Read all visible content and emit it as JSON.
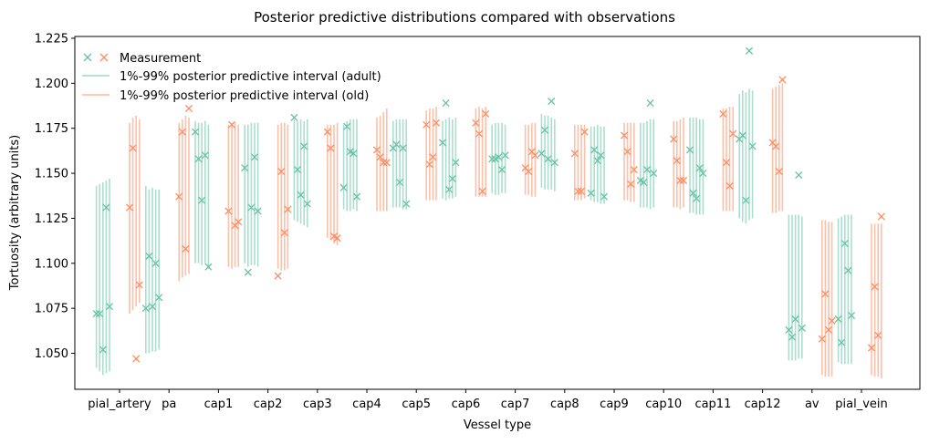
{
  "chart_data": {
    "type": "scatter",
    "title": "Posterior predictive distributions compared with observations",
    "xlabel": "Vessel type",
    "ylabel": "Tortuosity (arbitrary units)",
    "ylim": [
      1.03,
      1.226
    ],
    "yticks": [
      1.05,
      1.075,
      1.1,
      1.125,
      1.15,
      1.175,
      1.2,
      1.225
    ],
    "grid": false,
    "legend_position": "top-left",
    "legend": {
      "measurement": "Measurement",
      "adult_interval": "1%-99% posterior predictive interval (adult)",
      "old_interval": "1%-99% posterior predictive interval (old)"
    },
    "colors": {
      "adult": "#66c2a5",
      "old": "#fc8d62"
    },
    "categories": [
      {
        "name": "pial_artery",
        "adult": [
          {
            "lo": 1.042,
            "hi": 1.143,
            "obs": 1.072
          },
          {
            "lo": 1.04,
            "hi": 1.144,
            "obs": 1.072
          },
          {
            "lo": 1.038,
            "hi": 1.145,
            "obs": 1.052
          },
          {
            "lo": 1.039,
            "hi": 1.146,
            "obs": 1.131
          },
          {
            "lo": 1.04,
            "hi": 1.147,
            "obs": 1.076
          }
        ],
        "old": [
          {
            "lo": 1.072,
            "hi": 1.178,
            "obs": 1.131
          },
          {
            "lo": 1.074,
            "hi": 1.181,
            "obs": 1.164
          },
          {
            "lo": 1.076,
            "hi": 1.182,
            "obs": 1.047
          },
          {
            "lo": 1.078,
            "hi": 1.18,
            "obs": 1.088
          }
        ]
      },
      {
        "name": "pa",
        "adult": [
          {
            "lo": 1.05,
            "hi": 1.143,
            "obs": 1.075
          },
          {
            "lo": 1.05,
            "hi": 1.141,
            "obs": 1.104
          },
          {
            "lo": 1.051,
            "hi": 1.142,
            "obs": 1.076
          },
          {
            "lo": 1.051,
            "hi": 1.141,
            "obs": 1.1
          },
          {
            "lo": 1.052,
            "hi": 1.141,
            "obs": 1.081
          }
        ],
        "old": [
          {
            "lo": 1.09,
            "hi": 1.178,
            "obs": 1.137
          },
          {
            "lo": 1.092,
            "hi": 1.18,
            "obs": 1.173
          },
          {
            "lo": 1.093,
            "hi": 1.182,
            "obs": 1.108
          },
          {
            "lo": 1.094,
            "hi": 1.181,
            "obs": 1.186
          }
        ]
      },
      {
        "name": "cap1",
        "adult": [
          {
            "lo": 1.1,
            "hi": 1.179,
            "obs": 1.173
          },
          {
            "lo": 1.1,
            "hi": 1.178,
            "obs": 1.158
          },
          {
            "lo": 1.099,
            "hi": 1.178,
            "obs": 1.135
          },
          {
            "lo": 1.1,
            "hi": 1.179,
            "obs": 1.16
          },
          {
            "lo": 1.097,
            "hi": 1.177,
            "obs": 1.098
          }
        ],
        "old": [
          {
            "lo": 1.098,
            "hi": 1.177,
            "obs": 1.129
          },
          {
            "lo": 1.097,
            "hi": 1.178,
            "obs": 1.177
          },
          {
            "lo": 1.098,
            "hi": 1.178,
            "obs": 1.121
          },
          {
            "lo": 1.098,
            "hi": 1.177,
            "obs": 1.123
          }
        ]
      },
      {
        "name": "cap2",
        "adult": [
          {
            "lo": 1.1,
            "hi": 1.177,
            "obs": 1.153
          },
          {
            "lo": 1.098,
            "hi": 1.177,
            "obs": 1.095
          },
          {
            "lo": 1.099,
            "hi": 1.178,
            "obs": 1.131
          },
          {
            "lo": 1.099,
            "hi": 1.178,
            "obs": 1.159
          },
          {
            "lo": 1.098,
            "hi": 1.178,
            "obs": 1.129
          }
        ],
        "old": [
          {
            "lo": 1.097,
            "hi": 1.177,
            "obs": 1.093
          },
          {
            "lo": 1.096,
            "hi": 1.178,
            "obs": 1.151
          },
          {
            "lo": 1.096,
            "hi": 1.178,
            "obs": 1.117
          },
          {
            "lo": 1.097,
            "hi": 1.177,
            "obs": 1.13
          }
        ]
      },
      {
        "name": "cap3",
        "adult": [
          {
            "lo": 1.124,
            "hi": 1.18,
            "obs": 1.181
          },
          {
            "lo": 1.123,
            "hi": 1.179,
            "obs": 1.152
          },
          {
            "lo": 1.122,
            "hi": 1.18,
            "obs": 1.138
          },
          {
            "lo": 1.121,
            "hi": 1.179,
            "obs": 1.165
          },
          {
            "lo": 1.12,
            "hi": 1.18,
            "obs": 1.133
          }
        ],
        "old": [
          {
            "lo": 1.114,
            "hi": 1.177,
            "obs": 1.173
          },
          {
            "lo": 1.113,
            "hi": 1.177,
            "obs": 1.164
          },
          {
            "lo": 1.111,
            "hi": 1.177,
            "obs": 1.115
          },
          {
            "lo": 1.11,
            "hi": 1.178,
            "obs": 1.114
          }
        ]
      },
      {
        "name": "cap4",
        "adult": [
          {
            "lo": 1.13,
            "hi": 1.177,
            "obs": 1.142
          },
          {
            "lo": 1.129,
            "hi": 1.179,
            "obs": 1.176
          },
          {
            "lo": 1.129,
            "hi": 1.18,
            "obs": 1.162
          },
          {
            "lo": 1.13,
            "hi": 1.18,
            "obs": 1.161
          },
          {
            "lo": 1.129,
            "hi": 1.18,
            "obs": 1.137
          }
        ],
        "old": [
          {
            "lo": 1.129,
            "hi": 1.181,
            "obs": 1.163
          },
          {
            "lo": 1.129,
            "hi": 1.182,
            "obs": 1.159
          },
          {
            "lo": 1.129,
            "hi": 1.184,
            "obs": 1.156
          },
          {
            "lo": 1.129,
            "hi": 1.186,
            "obs": 1.156
          }
        ]
      },
      {
        "name": "cap5",
        "adult": [
          {
            "lo": 1.131,
            "hi": 1.179,
            "obs": 1.164
          },
          {
            "lo": 1.131,
            "hi": 1.18,
            "obs": 1.166
          },
          {
            "lo": 1.131,
            "hi": 1.18,
            "obs": 1.145
          },
          {
            "lo": 1.13,
            "hi": 1.18,
            "obs": 1.164
          },
          {
            "lo": 1.13,
            "hi": 1.18,
            "obs": 1.133
          }
        ],
        "old": [
          {
            "lo": 1.135,
            "hi": 1.185,
            "obs": 1.177
          },
          {
            "lo": 1.135,
            "hi": 1.186,
            "obs": 1.155
          },
          {
            "lo": 1.135,
            "hi": 1.186,
            "obs": 1.159
          },
          {
            "lo": 1.135,
            "hi": 1.187,
            "obs": 1.178
          }
        ]
      },
      {
        "name": "cap6",
        "adult": [
          {
            "lo": 1.136,
            "hi": 1.179,
            "obs": 1.167
          },
          {
            "lo": 1.135,
            "hi": 1.18,
            "obs": 1.189
          },
          {
            "lo": 1.136,
            "hi": 1.181,
            "obs": 1.141
          },
          {
            "lo": 1.136,
            "hi": 1.18,
            "obs": 1.147
          },
          {
            "lo": 1.137,
            "hi": 1.181,
            "obs": 1.156
          }
        ],
        "old": [
          {
            "lo": 1.137,
            "hi": 1.186,
            "obs": 1.178
          },
          {
            "lo": 1.137,
            "hi": 1.187,
            "obs": 1.172
          },
          {
            "lo": 1.137,
            "hi": 1.186,
            "obs": 1.14
          },
          {
            "lo": 1.137,
            "hi": 1.187,
            "obs": 1.183
          }
        ]
      },
      {
        "name": "cap7",
        "adult": [
          {
            "lo": 1.139,
            "hi": 1.177,
            "obs": 1.158
          },
          {
            "lo": 1.138,
            "hi": 1.178,
            "obs": 1.158
          },
          {
            "lo": 1.138,
            "hi": 1.178,
            "obs": 1.159
          },
          {
            "lo": 1.139,
            "hi": 1.178,
            "obs": 1.152
          },
          {
            "lo": 1.139,
            "hi": 1.177,
            "obs": 1.16
          }
        ],
        "old": [
          {
            "lo": 1.138,
            "hi": 1.177,
            "obs": 1.153
          },
          {
            "lo": 1.138,
            "hi": 1.177,
            "obs": 1.151
          },
          {
            "lo": 1.137,
            "hi": 1.178,
            "obs": 1.162
          },
          {
            "lo": 1.137,
            "hi": 1.178,
            "obs": 1.16
          }
        ]
      },
      {
        "name": "cap8",
        "adult": [
          {
            "lo": 1.142,
            "hi": 1.183,
            "obs": 1.161
          },
          {
            "lo": 1.141,
            "hi": 1.182,
            "obs": 1.174
          },
          {
            "lo": 1.141,
            "hi": 1.182,
            "obs": 1.158
          },
          {
            "lo": 1.141,
            "hi": 1.181,
            "obs": 1.19
          },
          {
            "lo": 1.14,
            "hi": 1.18,
            "obs": 1.156
          }
        ],
        "old": [
          {
            "lo": 1.135,
            "hi": 1.177,
            "obs": 1.161
          },
          {
            "lo": 1.135,
            "hi": 1.177,
            "obs": 1.14
          },
          {
            "lo": 1.135,
            "hi": 1.177,
            "obs": 1.14
          },
          {
            "lo": 1.136,
            "hi": 1.177,
            "obs": 1.173
          }
        ]
      },
      {
        "name": "cap9",
        "adult": [
          {
            "lo": 1.135,
            "hi": 1.176,
            "obs": 1.139
          },
          {
            "lo": 1.134,
            "hi": 1.176,
            "obs": 1.163
          },
          {
            "lo": 1.134,
            "hi": 1.177,
            "obs": 1.157
          },
          {
            "lo": 1.133,
            "hi": 1.176,
            "obs": 1.16
          },
          {
            "lo": 1.133,
            "hi": 1.176,
            "obs": 1.137
          }
        ],
        "old": [
          {
            "lo": 1.135,
            "hi": 1.178,
            "obs": 1.171
          },
          {
            "lo": 1.135,
            "hi": 1.178,
            "obs": 1.162
          },
          {
            "lo": 1.134,
            "hi": 1.178,
            "obs": 1.144
          },
          {
            "lo": 1.134,
            "hi": 1.178,
            "obs": 1.152
          }
        ]
      },
      {
        "name": "cap10",
        "adult": [
          {
            "lo": 1.131,
            "hi": 1.178,
            "obs": 1.146
          },
          {
            "lo": 1.131,
            "hi": 1.178,
            "obs": 1.145
          },
          {
            "lo": 1.131,
            "hi": 1.179,
            "obs": 1.152
          },
          {
            "lo": 1.13,
            "hi": 1.18,
            "obs": 1.189
          },
          {
            "lo": 1.131,
            "hi": 1.18,
            "obs": 1.15
          }
        ],
        "old": [
          {
            "lo": 1.131,
            "hi": 1.179,
            "obs": 1.169
          },
          {
            "lo": 1.131,
            "hi": 1.179,
            "obs": 1.157
          },
          {
            "lo": 1.13,
            "hi": 1.18,
            "obs": 1.146
          },
          {
            "lo": 1.131,
            "hi": 1.181,
            "obs": 1.146
          }
        ]
      },
      {
        "name": "cap11",
        "adult": [
          {
            "lo": 1.128,
            "hi": 1.181,
            "obs": 1.163
          },
          {
            "lo": 1.128,
            "hi": 1.181,
            "obs": 1.139
          },
          {
            "lo": 1.127,
            "hi": 1.181,
            "obs": 1.136
          },
          {
            "lo": 1.127,
            "hi": 1.18,
            "obs": 1.153
          },
          {
            "lo": 1.127,
            "hi": 1.18,
            "obs": 1.15
          }
        ],
        "old": [
          {
            "lo": 1.129,
            "hi": 1.186,
            "obs": 1.183
          },
          {
            "lo": 1.129,
            "hi": 1.186,
            "obs": 1.156
          },
          {
            "lo": 1.129,
            "hi": 1.187,
            "obs": 1.143
          },
          {
            "lo": 1.129,
            "hi": 1.187,
            "obs": 1.172
          }
        ]
      },
      {
        "name": "cap12",
        "adult": [
          {
            "lo": 1.125,
            "hi": 1.194,
            "obs": 1.169
          },
          {
            "lo": 1.123,
            "hi": 1.196,
            "obs": 1.171
          },
          {
            "lo": 1.122,
            "hi": 1.195,
            "obs": 1.135
          },
          {
            "lo": 1.124,
            "hi": 1.197,
            "obs": 1.218
          },
          {
            "lo": 1.125,
            "hi": 1.196,
            "obs": 1.165
          }
        ],
        "old": [
          {
            "lo": 1.128,
            "hi": 1.197,
            "obs": 1.167
          },
          {
            "lo": 1.128,
            "hi": 1.198,
            "obs": 1.165
          },
          {
            "lo": 1.129,
            "hi": 1.199,
            "obs": 1.151
          },
          {
            "lo": 1.129,
            "hi": 1.2,
            "obs": 1.202
          }
        ]
      },
      {
        "name": "av",
        "adult": [
          {
            "lo": 1.046,
            "hi": 1.127,
            "obs": 1.063
          },
          {
            "lo": 1.046,
            "hi": 1.127,
            "obs": 1.059
          },
          {
            "lo": 1.046,
            "hi": 1.127,
            "obs": 1.069
          },
          {
            "lo": 1.047,
            "hi": 1.127,
            "obs": 1.149
          },
          {
            "lo": 1.047,
            "hi": 1.126,
            "obs": 1.064
          }
        ],
        "old": [
          {
            "lo": 1.038,
            "hi": 1.124,
            "obs": 1.058
          },
          {
            "lo": 1.037,
            "hi": 1.124,
            "obs": 1.083
          },
          {
            "lo": 1.037,
            "hi": 1.123,
            "obs": 1.063
          },
          {
            "lo": 1.037,
            "hi": 1.123,
            "obs": 1.068
          }
        ]
      },
      {
        "name": "pial_vein",
        "adult": [
          {
            "lo": 1.045,
            "hi": 1.125,
            "obs": 1.069
          },
          {
            "lo": 1.044,
            "hi": 1.126,
            "obs": 1.056
          },
          {
            "lo": 1.044,
            "hi": 1.127,
            "obs": 1.111
          },
          {
            "lo": 1.044,
            "hi": 1.127,
            "obs": 1.096
          },
          {
            "lo": 1.044,
            "hi": 1.127,
            "obs": 1.071
          }
        ],
        "old": [
          {
            "lo": 1.038,
            "hi": 1.122,
            "obs": 1.053
          },
          {
            "lo": 1.037,
            "hi": 1.122,
            "obs": 1.087
          },
          {
            "lo": 1.037,
            "hi": 1.122,
            "obs": 1.06
          },
          {
            "lo": 1.036,
            "hi": 1.122,
            "obs": 1.126
          }
        ]
      }
    ]
  }
}
